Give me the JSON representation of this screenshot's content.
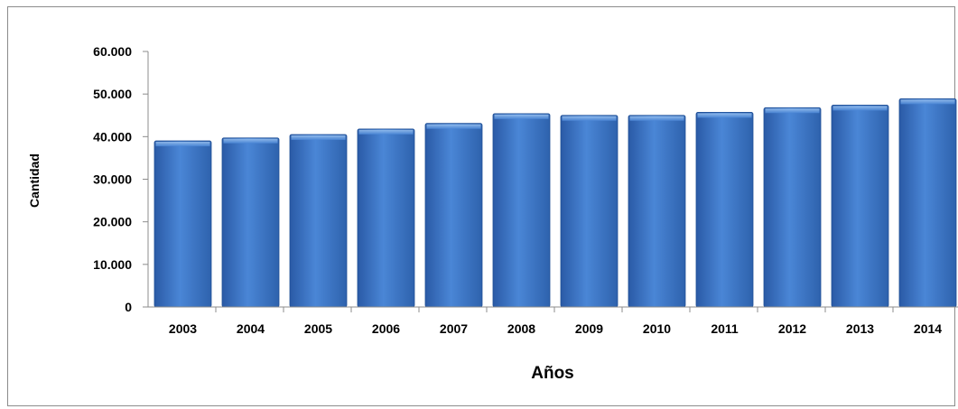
{
  "chart_data": {
    "type": "bar",
    "title": "",
    "xlabel": "Años",
    "ylabel": "Cantidad",
    "categories": [
      "2003",
      "2004",
      "2005",
      "2006",
      "2007",
      "2008",
      "2009",
      "2010",
      "2011",
      "2012",
      "2013",
      "2014"
    ],
    "values": [
      39000,
      39700,
      40500,
      41800,
      43100,
      45400,
      45000,
      45000,
      45700,
      46800,
      47400,
      48900
    ],
    "ylim": [
      0,
      60000
    ],
    "yticks": [
      "0",
      "10.000",
      "20.000",
      "30.000",
      "40.000",
      "50.000",
      "60.000"
    ],
    "grid": false,
    "legend": "none",
    "bar_color": "#3f78c8"
  }
}
